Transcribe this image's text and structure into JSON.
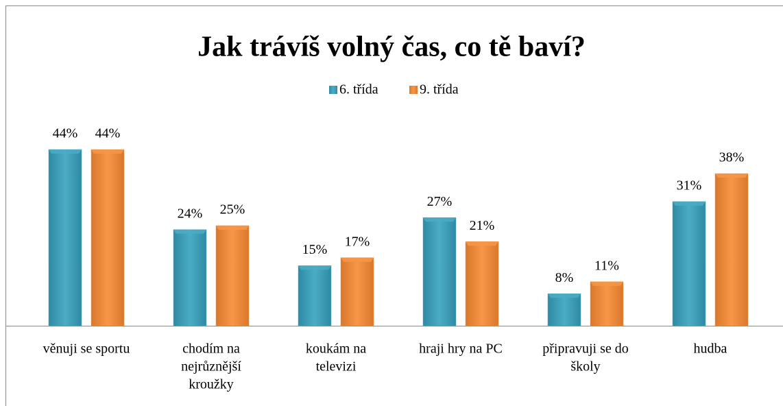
{
  "chart_data": {
    "type": "bar",
    "title": "Jak trávíš volný čas, co tě baví?",
    "categories": [
      [
        "věnuji se sportu"
      ],
      [
        "chodím na",
        "nejrůznější",
        "kroužky"
      ],
      [
        "koukám na",
        "televizi"
      ],
      [
        "hraji hry na PC"
      ],
      [
        "připravuji se do",
        "školy"
      ],
      [
        "hudba"
      ]
    ],
    "series": [
      {
        "name": "6. třída",
        "color": "#4bacc6",
        "values": [
          44,
          24,
          15,
          27,
          8,
          31
        ],
        "value_labels": [
          "44%",
          "24%",
          "15%",
          "27%",
          "8%",
          "31%"
        ]
      },
      {
        "name": "9. třída",
        "color": "#f79646",
        "values": [
          44,
          25,
          17,
          21,
          11,
          38
        ],
        "value_labels": [
          "44%",
          "25%",
          "17%",
          "21%",
          "11%",
          "38%"
        ]
      }
    ],
    "legend": "top"
  }
}
